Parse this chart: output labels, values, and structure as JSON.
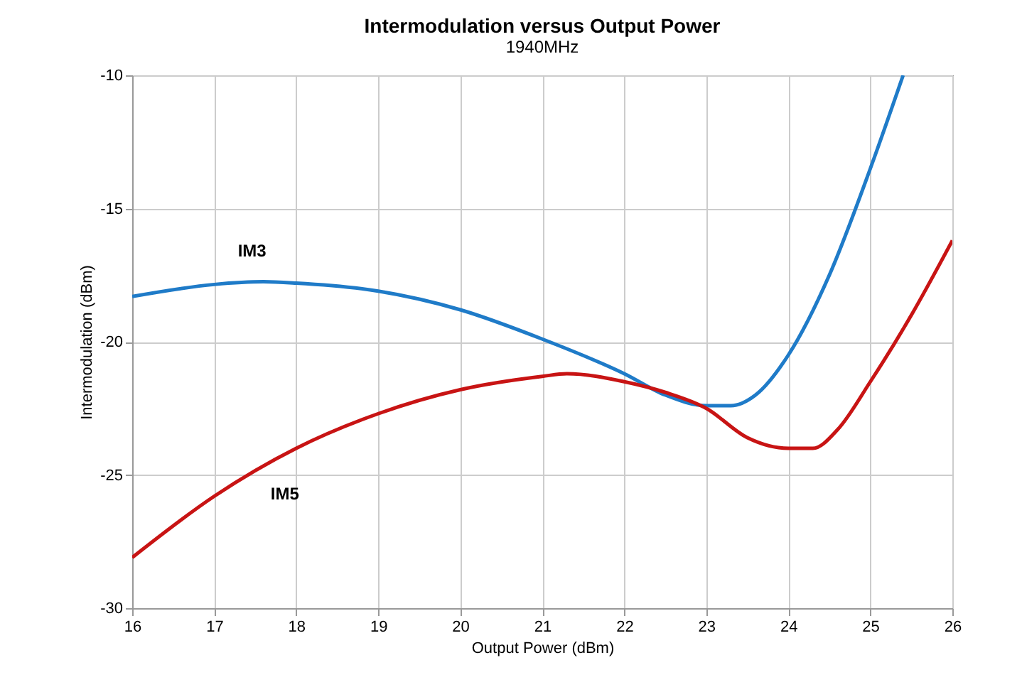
{
  "chart_data": {
    "type": "line",
    "title": "Intermodulation versus Output Power",
    "subtitle": "1940MHz",
    "xlabel": "Output Power (dBm)",
    "ylabel": "Intermodulation (dBm)",
    "xlim": [
      16,
      26
    ],
    "xticks": [
      16,
      17,
      18,
      19,
      20,
      21,
      22,
      23,
      24,
      25,
      26
    ],
    "ylim": [
      -30,
      -10
    ],
    "yticks": [
      -30,
      -25,
      -20,
      -15,
      -10
    ],
    "grid": true,
    "legend": false,
    "marker": "none",
    "line_style": "solid",
    "series": [
      {
        "name": "IM3",
        "color": "#1f7bc8",
        "x": [
          16,
          17,
          17.6,
          18,
          19,
          20,
          21,
          22,
          22.5,
          23,
          23.3,
          23.6,
          24,
          24.5,
          25,
          25.4
        ],
        "values": [
          -18.3,
          -17.85,
          -17.75,
          -17.8,
          -18.1,
          -18.8,
          -19.9,
          -21.2,
          -22.0,
          -22.4,
          -22.4,
          -22.0,
          -20.5,
          -17.5,
          -13.5,
          -10.0
        ]
      },
      {
        "name": "IM5",
        "color": "#c81414",
        "x": [
          16,
          17,
          18,
          19,
          20,
          21,
          21.3,
          22,
          22.5,
          23,
          23.5,
          24,
          24.3,
          24.6,
          25,
          25.5,
          26
        ],
        "values": [
          -28.1,
          -25.8,
          -24.0,
          -22.7,
          -21.8,
          -21.3,
          -21.2,
          -21.5,
          -21.9,
          -22.5,
          -23.6,
          -24.0,
          -24.0,
          -23.3,
          -21.5,
          -19.0,
          -16.2
        ]
      }
    ]
  }
}
